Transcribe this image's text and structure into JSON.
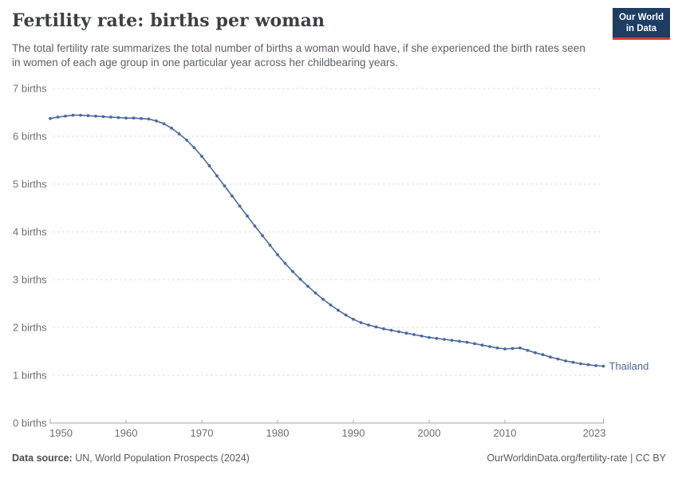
{
  "header": {
    "title": "Fertility rate: births per woman",
    "subtitle": "The total fertility rate summarizes the total number of births a woman would have, if she experienced the birth rates seen in women of each age group in one particular year across her childbearing years."
  },
  "logo": {
    "line1": "Our World",
    "line2": "in Data"
  },
  "chart_data": {
    "type": "line",
    "title": "Fertility rate: births per woman",
    "xlabel": "",
    "ylabel": "births per woman",
    "y_unit": "births",
    "ylim": [
      0,
      7
    ],
    "yticks": [
      0,
      1,
      2,
      3,
      4,
      5,
      6,
      7
    ],
    "ytick_labels": [
      "0 births",
      "1 births",
      "2 births",
      "3 births",
      "4 births",
      "5 births",
      "6 births",
      "7 births"
    ],
    "xlim": [
      1950,
      2023
    ],
    "xticks": [
      1950,
      1960,
      1970,
      1980,
      1990,
      2000,
      2010,
      2023
    ],
    "grid": "horizontal-dashed",
    "legend_position": "end-of-line-label",
    "x": [
      1950,
      1951,
      1952,
      1953,
      1954,
      1955,
      1956,
      1957,
      1958,
      1959,
      1960,
      1961,
      1962,
      1963,
      1964,
      1965,
      1966,
      1967,
      1968,
      1969,
      1970,
      1971,
      1972,
      1973,
      1974,
      1975,
      1976,
      1977,
      1978,
      1979,
      1980,
      1981,
      1982,
      1983,
      1984,
      1985,
      1986,
      1987,
      1988,
      1989,
      1990,
      1991,
      1992,
      1993,
      1994,
      1995,
      1996,
      1997,
      1998,
      1999,
      2000,
      2001,
      2002,
      2003,
      2004,
      2005,
      2006,
      2007,
      2008,
      2009,
      2010,
      2011,
      2012,
      2013,
      2014,
      2015,
      2016,
      2017,
      2018,
      2019,
      2020,
      2021,
      2022,
      2023
    ],
    "series": [
      {
        "name": "Thailand",
        "color": "#4C6A9E",
        "values": [
          6.37,
          6.4,
          6.42,
          6.44,
          6.44,
          6.43,
          6.42,
          6.41,
          6.4,
          6.39,
          6.38,
          6.38,
          6.37,
          6.36,
          6.32,
          6.26,
          6.17,
          6.05,
          5.92,
          5.76,
          5.58,
          5.38,
          5.17,
          4.96,
          4.75,
          4.54,
          4.33,
          4.12,
          3.92,
          3.72,
          3.52,
          3.34,
          3.17,
          3.01,
          2.86,
          2.72,
          2.59,
          2.47,
          2.36,
          2.26,
          2.17,
          2.1,
          2.05,
          2.01,
          1.97,
          1.94,
          1.91,
          1.88,
          1.85,
          1.82,
          1.79,
          1.77,
          1.75,
          1.73,
          1.71,
          1.69,
          1.66,
          1.63,
          1.6,
          1.57,
          1.55,
          1.56,
          1.57,
          1.52,
          1.47,
          1.43,
          1.38,
          1.34,
          1.3,
          1.27,
          1.24,
          1.22,
          1.2,
          1.19
        ]
      }
    ]
  },
  "footer": {
    "source_label": "Data source:",
    "source_rest": " UN, World Population Prospects (2024)",
    "link_text": "OurWorldinData.org/fertility-rate | CC BY"
  },
  "colors": {
    "series_blue": "#4C6A9E",
    "gridline": "#dcdcdc",
    "axis": "#a6a6a6",
    "tick_label": "#6f6f6f",
    "logo_bg": "#1d3d63",
    "logo_red": "#d83c3c"
  }
}
